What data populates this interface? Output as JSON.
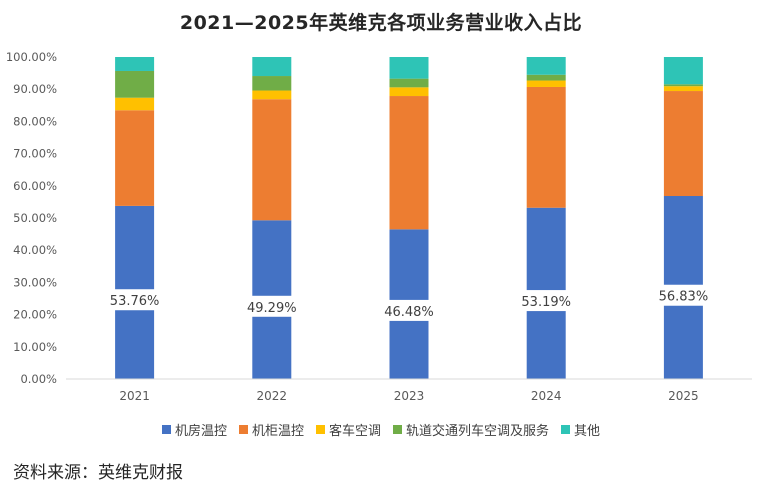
{
  "chart_data": {
    "type": "bar",
    "stacked": true,
    "title": "2021—2025年英维克各项业务营业收入占比",
    "categories": [
      "2021",
      "2022",
      "2023",
      "2024",
      "2025"
    ],
    "ylim": [
      0,
      100
    ],
    "yticks": [
      "0.00%",
      "10.00%",
      "20.00%",
      "30.00%",
      "40.00%",
      "50.00%",
      "60.00%",
      "70.00%",
      "80.00%",
      "90.00%",
      "100.00%"
    ],
    "series": [
      {
        "name": "机房温控",
        "color": "#4472C4",
        "values": [
          53.76,
          49.29,
          46.48,
          53.19,
          56.83
        ],
        "data_labels": [
          "53.76%",
          "49.29%",
          "46.48%",
          "53.19%",
          "56.83%"
        ]
      },
      {
        "name": "机柜温控",
        "color": "#ED7D31",
        "values": [
          29.7,
          37.6,
          41.4,
          37.5,
          32.6
        ]
      },
      {
        "name": "客车空调",
        "color": "#FFC000",
        "values": [
          3.9,
          2.7,
          2.7,
          2.0,
          1.5
        ]
      },
      {
        "name": "轨道交通列车空调及服务",
        "color": "#70AD47",
        "values": [
          8.3,
          4.5,
          2.7,
          1.8,
          0.6
        ]
      },
      {
        "name": "其他",
        "color": "#2EC4B6",
        "values": [
          4.34,
          5.91,
          6.72,
          5.51,
          8.47
        ]
      }
    ],
    "grid": false,
    "legend_position": "bottom"
  },
  "source": "资料来源：英维克财报"
}
